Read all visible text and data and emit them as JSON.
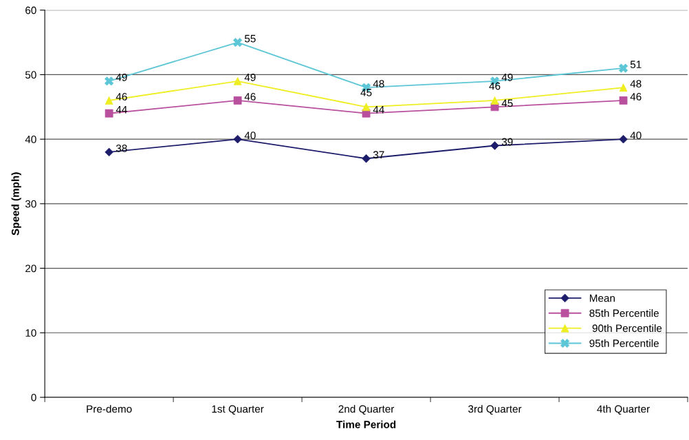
{
  "chart_data": {
    "type": "line",
    "xlabel": "Time Period",
    "ylabel": "Speed (mph)",
    "categories": [
      "Pre-demo",
      "1st Quarter",
      "2nd Quarter",
      "3rd Quarter",
      "4th Quarter"
    ],
    "series": [
      {
        "name": "Mean",
        "color": "#1c1c6b",
        "marker": "diamond",
        "values": [
          38,
          40,
          37,
          39,
          40
        ]
      },
      {
        "name": "85th Percentile",
        "color": "#b8509e",
        "marker": "square",
        "values": [
          44,
          46,
          44,
          45,
          46
        ]
      },
      {
        "name": " 90th Percentile",
        "color": "#eeee22",
        "marker": "triangle",
        "values": [
          46,
          49,
          45,
          46,
          48
        ]
      },
      {
        "name": "95th Percentile",
        "color": "#5cc6d6",
        "marker": "cross",
        "values": [
          49,
          55,
          48,
          49,
          51
        ]
      }
    ],
    "ylim": [
      0,
      60
    ],
    "yticks": [
      0,
      10,
      20,
      30,
      40,
      50,
      60
    ],
    "grid": "y",
    "legend": "bottom right",
    "data_labels": true,
    "line_style": "solid"
  }
}
